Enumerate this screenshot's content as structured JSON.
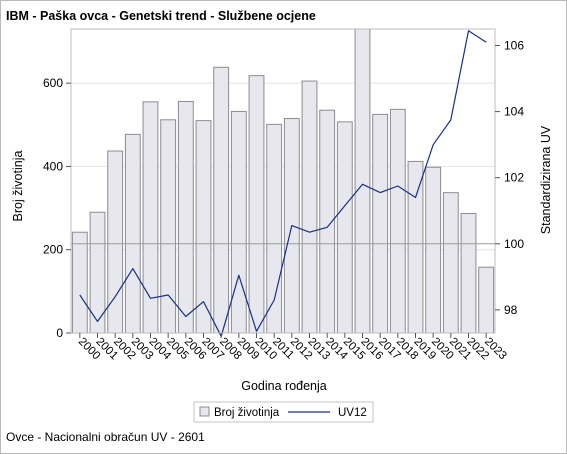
{
  "chart_data": {
    "type": "bar",
    "title": "IBM - Paška ovca - Genetski trend - Službene ocjene",
    "footnote": "Ovce - Nacionalni obračun UV - 2601",
    "xlabel": "Godina rođenja",
    "ylabel_left": "Broj životinja",
    "ylabel_right": "Standardizirana UV",
    "categories": [
      "2000",
      "2001",
      "2002",
      "2003",
      "2004",
      "2005",
      "2006",
      "2007",
      "2008",
      "2009",
      "2010",
      "2011",
      "2012",
      "2013",
      "2014",
      "2015",
      "2016",
      "2017",
      "2018",
      "2019",
      "2020",
      "2021",
      "2022",
      "2023"
    ],
    "left_axis": {
      "min": 0,
      "max": 730,
      "ticks": [
        0,
        200,
        400,
        600
      ]
    },
    "right_axis": {
      "min": 97.3,
      "max": 106.5,
      "ticks": [
        98,
        100,
        102,
        104,
        106
      ],
      "reference_line": 100
    },
    "series": [
      {
        "name": "Broj životinja",
        "kind": "bar",
        "axis": "left",
        "color": "#e6e8ee",
        "stroke": "#8c8c92",
        "values": [
          242,
          290,
          437,
          477,
          555,
          512,
          556,
          510,
          638,
          532,
          618,
          501,
          515,
          605,
          535,
          507,
          730,
          525,
          537,
          412,
          398,
          337,
          287,
          158
        ]
      },
      {
        "name": "UV12",
        "kind": "line",
        "axis": "right",
        "color": "#1b2f86",
        "values": [
          98.45,
          97.65,
          98.4,
          99.25,
          98.35,
          98.45,
          97.8,
          98.25,
          97.2,
          99.05,
          97.35,
          98.3,
          100.55,
          100.35,
          100.5,
          101.15,
          101.8,
          101.55,
          101.75,
          101.4,
          103.0,
          103.75,
          106.45,
          106.1
        ]
      }
    ],
    "grid": true,
    "legend_position": "bottom"
  },
  "legend": {
    "bar_label": "Broj životinja",
    "line_label": "UV12"
  }
}
